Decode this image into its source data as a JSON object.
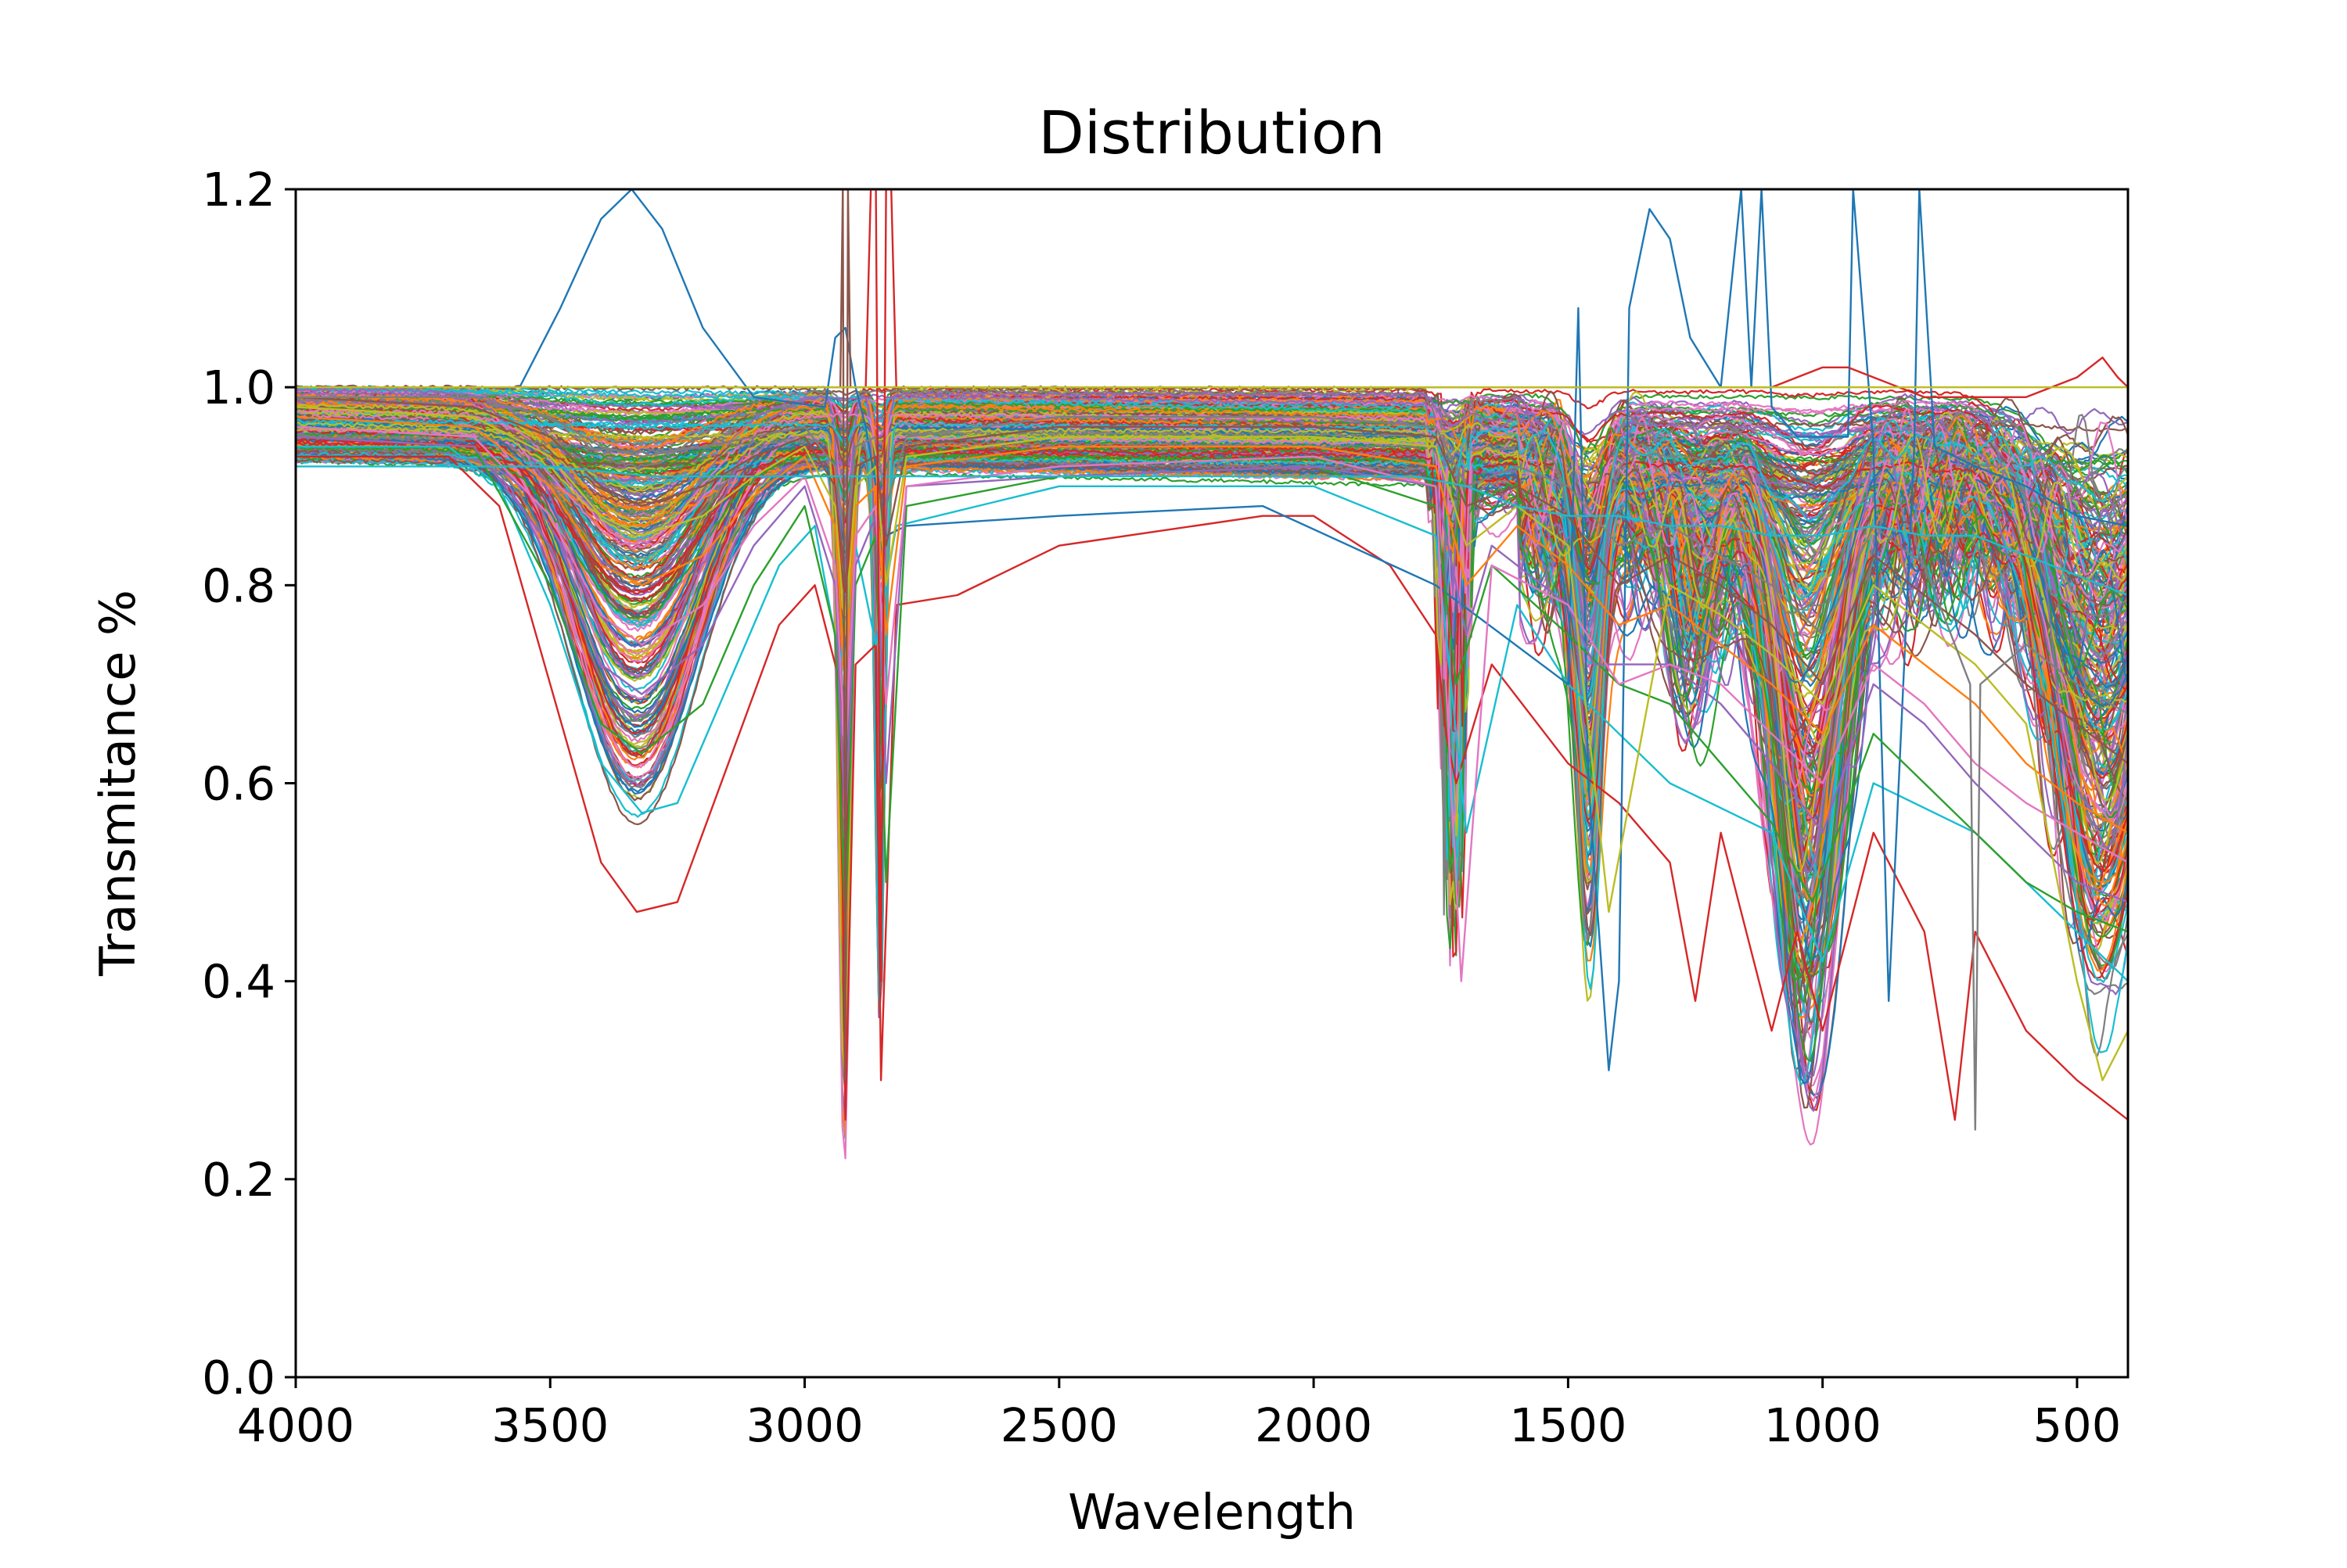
{
  "chart_data": {
    "type": "line",
    "title": "Distribution",
    "xlabel": "Wavelength",
    "ylabel": "Transmitance %",
    "xlim": [
      4000,
      400
    ],
    "ylim": [
      0.0,
      1.2
    ],
    "x_inverted": true,
    "xticks": [
      4000,
      3500,
      3000,
      2500,
      2000,
      1500,
      1000,
      500
    ],
    "xtick_labels": [
      "4000",
      "3500",
      "3000",
      "2500",
      "2000",
      "1500",
      "1000",
      "500"
    ],
    "yticks": [
      0.0,
      0.2,
      0.4,
      0.6,
      0.8,
      1.0,
      1.2
    ],
    "ytick_labels": [
      "0.0",
      "0.2",
      "0.4",
      "0.6",
      "0.8",
      "1.0",
      "1.2"
    ],
    "grid": false,
    "legend": "none",
    "series_count_approx": 300,
    "palette": [
      "#1f77b4",
      "#ff7f0e",
      "#2ca02c",
      "#d62728",
      "#9467bd",
      "#8c564b",
      "#e377c2",
      "#7f7f7f",
      "#bcbd22",
      "#17becf"
    ],
    "series": [
      {
        "color": "#d62728",
        "x": [
          4000,
          3700,
          3600,
          3500,
          3400,
          3330,
          3250,
          3150,
          3050,
          2980,
          2930,
          2920,
          2900,
          2860,
          2850,
          2820,
          2700,
          2500,
          2100,
          2000,
          1850,
          1760,
          1740,
          1720,
          1650,
          1500,
          1400,
          1300,
          1250,
          1200,
          1100,
          1050,
          1000,
          900,
          800,
          740,
          700,
          600,
          500,
          450,
          400
        ],
        "y": [
          0.93,
          0.93,
          0.88,
          0.7,
          0.52,
          0.47,
          0.48,
          0.62,
          0.76,
          0.8,
          0.7,
          0.26,
          0.72,
          0.74,
          0.3,
          0.78,
          0.79,
          0.84,
          0.87,
          0.87,
          0.82,
          0.75,
          0.65,
          0.6,
          0.72,
          0.62,
          0.58,
          0.52,
          0.38,
          0.55,
          0.35,
          0.45,
          0.35,
          0.55,
          0.45,
          0.26,
          0.45,
          0.35,
          0.3,
          0.28,
          0.26
        ]
      },
      {
        "color": "#17becf",
        "x": [
          4000,
          3700,
          3600,
          3500,
          3400,
          3320,
          3250,
          3150,
          3050,
          2980,
          2930,
          2900,
          2860,
          2820,
          2500,
          2000,
          1760,
          1700,
          1600,
          1500,
          1300,
          1100,
          1000,
          900,
          700,
          500,
          400
        ],
        "y": [
          0.94,
          0.94,
          0.9,
          0.78,
          0.62,
          0.57,
          0.58,
          0.7,
          0.82,
          0.86,
          0.72,
          0.84,
          0.74,
          0.86,
          0.9,
          0.9,
          0.85,
          0.55,
          0.78,
          0.7,
          0.6,
          0.55,
          0.42,
          0.6,
          0.55,
          0.45,
          0.4
        ]
      },
      {
        "color": "#1f77b4",
        "x": [
          4000,
          3560,
          3480,
          3400,
          3340,
          3280,
          3200,
          3100,
          2960,
          2940,
          2920,
          2900,
          2880,
          2860,
          2840,
          2800,
          2500,
          2100,
          1760,
          1500,
          1480,
          1460,
          1420,
          1400,
          1380,
          1340,
          1300,
          1260,
          1200,
          1160,
          1140,
          1120,
          1100,
          1050,
          1000,
          950,
          940,
          900,
          870,
          820,
          810,
          780,
          700,
          600,
          500,
          400
        ],
        "y": [
          1.0,
          1.0,
          1.08,
          1.17,
          1.2,
          1.16,
          1.06,
          0.99,
          0.98,
          1.05,
          1.06,
          1.0,
          0.96,
          0.9,
          0.85,
          0.86,
          0.87,
          0.88,
          0.8,
          0.7,
          1.08,
          0.6,
          0.31,
          0.4,
          1.08,
          1.18,
          1.15,
          1.05,
          1.0,
          1.2,
          1.0,
          1.2,
          0.98,
          0.95,
          0.95,
          0.95,
          1.2,
          0.94,
          0.38,
          0.94,
          1.2,
          0.94,
          0.92,
          0.9,
          0.87,
          0.86
        ]
      },
      {
        "color": "#2ca02c",
        "x": [
          4000,
          3650,
          3500,
          3400,
          3320,
          3200,
          3100,
          3000,
          2940,
          2920,
          2900,
          2860,
          2840,
          2800,
          2500,
          2000,
          1760,
          1720,
          1650,
          1500,
          1400,
          1300,
          1200,
          1100,
          1020,
          900,
          800,
          700,
          600,
          500,
          400
        ],
        "y": [
          0.95,
          0.94,
          0.8,
          0.66,
          0.63,
          0.68,
          0.8,
          0.88,
          0.75,
          0.45,
          0.8,
          0.85,
          0.5,
          0.88,
          0.91,
          0.92,
          0.88,
          0.7,
          0.82,
          0.75,
          0.7,
          0.68,
          0.62,
          0.56,
          0.48,
          0.65,
          0.6,
          0.55,
          0.5,
          0.47,
          0.45
        ]
      },
      {
        "color": "#9467bd",
        "x": [
          4000,
          3650,
          3500,
          3400,
          3320,
          3200,
          3100,
          3000,
          2940,
          2920,
          2900,
          2860,
          2840,
          2800,
          2500,
          2000,
          1760,
          1700,
          1650,
          1500,
          1450,
          1300,
          1200,
          1100,
          1000,
          900,
          800,
          700,
          600,
          500,
          400
        ],
        "y": [
          0.95,
          0.94,
          0.84,
          0.72,
          0.69,
          0.74,
          0.84,
          0.9,
          0.8,
          0.55,
          0.82,
          0.87,
          0.6,
          0.9,
          0.91,
          0.92,
          0.9,
          0.75,
          0.84,
          0.78,
          0.72,
          0.72,
          0.68,
          0.62,
          0.55,
          0.7,
          0.66,
          0.6,
          0.55,
          0.5,
          0.48
        ]
      },
      {
        "color": "#e377c2",
        "x": [
          4000,
          3650,
          3500,
          3400,
          3320,
          3200,
          3100,
          3000,
          2940,
          2920,
          2900,
          2860,
          2840,
          2800,
          2500,
          2000,
          1760,
          1710,
          1650,
          1500,
          1400,
          1300,
          1200,
          1100,
          1000,
          900,
          800,
          700,
          600,
          500,
          400
        ],
        "y": [
          0.96,
          0.95,
          0.87,
          0.77,
          0.74,
          0.78,
          0.86,
          0.91,
          0.82,
          0.62,
          0.85,
          0.88,
          0.68,
          0.9,
          0.92,
          0.93,
          0.9,
          0.4,
          0.82,
          0.78,
          0.7,
          0.72,
          0.7,
          0.65,
          0.6,
          0.72,
          0.68,
          0.62,
          0.58,
          0.55,
          0.52
        ]
      },
      {
        "color": "#ff7f0e",
        "x": [
          4000,
          3650,
          3500,
          3400,
          3320,
          3200,
          3100,
          3000,
          2940,
          2920,
          2900,
          2860,
          2840,
          2800,
          2500,
          2000,
          1760,
          1700,
          1600,
          1500,
          1400,
          1300,
          1200,
          1100,
          1000,
          900,
          800,
          700,
          600,
          500,
          400
        ],
        "y": [
          0.97,
          0.96,
          0.9,
          0.82,
          0.8,
          0.83,
          0.89,
          0.93,
          0.86,
          0.7,
          0.88,
          0.9,
          0.75,
          0.92,
          0.94,
          0.94,
          0.92,
          0.8,
          0.86,
          0.82,
          0.76,
          0.78,
          0.74,
          0.7,
          0.65,
          0.76,
          0.72,
          0.68,
          0.62,
          0.58,
          0.55
        ]
      },
      {
        "color": "#bcbd22",
        "x": [
          4000,
          3650,
          3500,
          3400,
          3320,
          3200,
          3100,
          3000,
          2940,
          2920,
          2900,
          2860,
          2840,
          2800,
          2500,
          2000,
          1760,
          1700,
          1600,
          1500,
          1420,
          1300,
          1200,
          1100,
          1000,
          900,
          800,
          700,
          600,
          500,
          450,
          400
        ],
        "y": [
          0.98,
          0.97,
          0.93,
          0.87,
          0.85,
          0.87,
          0.91,
          0.94,
          0.88,
          0.75,
          0.9,
          0.92,
          0.8,
          0.93,
          0.95,
          0.95,
          0.94,
          0.84,
          0.88,
          0.84,
          0.47,
          0.8,
          0.77,
          0.73,
          0.68,
          0.8,
          0.76,
          0.72,
          0.66,
          0.4,
          0.3,
          0.35
        ]
      },
      {
        "color": "#8c564b",
        "x": [
          4000,
          3650,
          3500,
          3400,
          3320,
          3200,
          3100,
          3000,
          2940,
          2920,
          2900,
          2860,
          2840,
          2800,
          2500,
          2000,
          1760,
          1700,
          1600,
          1500,
          1400,
          1300,
          1200,
          1100,
          1000,
          900,
          800,
          700,
          600,
          500,
          400
        ],
        "y": [
          0.99,
          0.98,
          0.95,
          0.9,
          0.88,
          0.9,
          0.93,
          0.95,
          0.9,
          0.8,
          0.92,
          0.93,
          0.84,
          0.94,
          0.96,
          0.96,
          0.95,
          0.88,
          0.9,
          0.87,
          0.8,
          0.83,
          0.8,
          0.76,
          0.7,
          0.83,
          0.79,
          0.75,
          0.7,
          0.66,
          0.62
        ]
      },
      {
        "color": "#7f7f7f",
        "x": [
          4000,
          3650,
          3500,
          3400,
          3320,
          3200,
          3100,
          3000,
          2940,
          2920,
          2900,
          2860,
          2840,
          2800,
          2500,
          2000,
          1760,
          1700,
          1600,
          1500,
          1400,
          1300,
          1200,
          1100,
          1000,
          900,
          800,
          710,
          700,
          690,
          600,
          500,
          400
        ],
        "y": [
          0.99,
          0.99,
          0.97,
          0.94,
          0.93,
          0.94,
          0.95,
          0.96,
          0.92,
          0.84,
          0.94,
          0.95,
          0.88,
          0.95,
          0.97,
          0.97,
          0.96,
          0.9,
          0.92,
          0.9,
          0.84,
          0.86,
          0.83,
          0.8,
          0.75,
          0.86,
          0.82,
          0.7,
          0.25,
          0.7,
          0.74,
          0.7,
          0.67
        ]
      },
      {
        "color": "#17becf",
        "x": [
          4000,
          3500,
          3300,
          3000,
          2500,
          2000,
          1800,
          1700,
          1600,
          1500,
          1400,
          1300,
          1200,
          1100,
          1000,
          900,
          800,
          700,
          600,
          500,
          400
        ],
        "y": [
          0.92,
          0.92,
          0.91,
          0.91,
          0.91,
          0.91,
          0.91,
          0.9,
          0.88,
          0.87,
          0.87,
          0.86,
          0.86,
          0.85,
          0.85,
          0.86,
          0.85,
          0.85,
          0.83,
          0.81,
          0.79
        ]
      },
      {
        "color": "#d62728",
        "x": [
          4000,
          3000,
          2000,
          1750,
          1500,
          1200,
          1100,
          1000,
          950,
          900,
          850,
          800,
          700,
          600,
          500,
          450,
          420,
          400
        ],
        "y": [
          1.0,
          1.0,
          1.0,
          1.0,
          1.0,
          1.0,
          1.0,
          1.02,
          1.02,
          1.01,
          1.0,
          0.99,
          0.99,
          0.99,
          1.01,
          1.03,
          1.01,
          1.0
        ]
      },
      {
        "color": "#d62728",
        "x": [
          4000,
          3000,
          2880,
          2870,
          2860,
          2850,
          2840,
          2830,
          2820,
          2700,
          2000
        ],
        "y": [
          1.0,
          1.0,
          1.0,
          1.2,
          1.2,
          0.4,
          1.2,
          1.2,
          1.0,
          1.0,
          1.0
        ]
      },
      {
        "color": "#8c564b",
        "x": [
          4000,
          3000,
          2930,
          2925,
          2920,
          2915,
          2910,
          2900,
          2800,
          2000
        ],
        "y": [
          1.0,
          1.0,
          1.0,
          1.2,
          0.3,
          1.2,
          1.0,
          1.0,
          1.0,
          1.0
        ]
      },
      {
        "color": "#bcbd22",
        "x": [
          4000,
          2000,
          1000,
          800,
          700,
          600,
          500,
          450,
          400
        ],
        "y": [
          1.0,
          1.0,
          1.0,
          1.0,
          1.0,
          1.0,
          1.0,
          1.0,
          1.0
        ]
      }
    ]
  }
}
